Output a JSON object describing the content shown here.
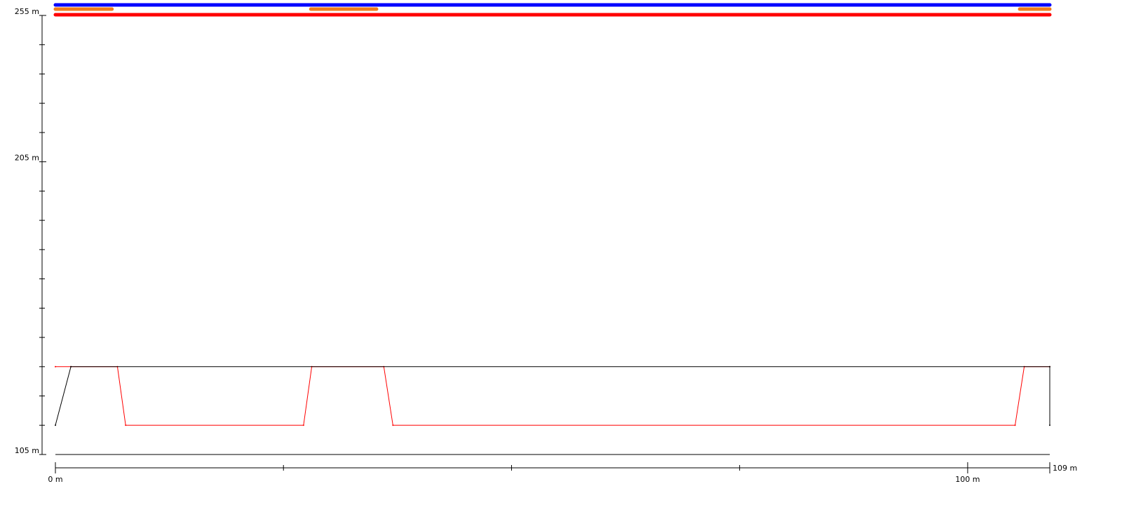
{
  "chart_data": {
    "type": "line",
    "title": "",
    "xlabel": "",
    "ylabel": "",
    "xlim": [
      0,
      109
    ],
    "ylim": [
      105,
      255
    ],
    "x_unit": "m",
    "y_unit": "m",
    "x_tick_values": [
      0,
      25,
      50,
      75,
      100,
      109
    ],
    "x_tick_labels": [
      "0 m",
      "",
      "",
      "",
      "100 m",
      "109 m"
    ],
    "y_tick_values": [
      105,
      115,
      125,
      135,
      145,
      155,
      165,
      175,
      185,
      195,
      205,
      215,
      225,
      235,
      245,
      255
    ],
    "y_tick_labels": {
      "105": "105 m",
      "205": "205 m",
      "255": "255 m"
    },
    "baseline_y": 105,
    "series": [
      {
        "color": "#ff0000",
        "x": [
          0,
          1.7,
          6.8,
          7.7,
          27.2,
          28.1,
          36.0,
          37.0,
          105.2,
          106.2,
          109
        ],
        "y": [
          135,
          135,
          135,
          115,
          115,
          135,
          135,
          115,
          115,
          135,
          135
        ]
      },
      {
        "color": "#000000",
        "x": [
          0,
          1.7,
          109,
          109
        ],
        "y": [
          115,
          135,
          135,
          115
        ]
      }
    ],
    "top_bands": [
      {
        "color": "#0000ff",
        "segments": [
          [
            0,
            109
          ]
        ]
      },
      {
        "color": "#f07d1e",
        "segments": [
          [
            0,
            6.2
          ],
          [
            28,
            35.2
          ],
          [
            105.7,
            109
          ]
        ]
      },
      {
        "color": "#ff0000",
        "segments": [
          [
            0,
            109
          ]
        ]
      }
    ]
  }
}
